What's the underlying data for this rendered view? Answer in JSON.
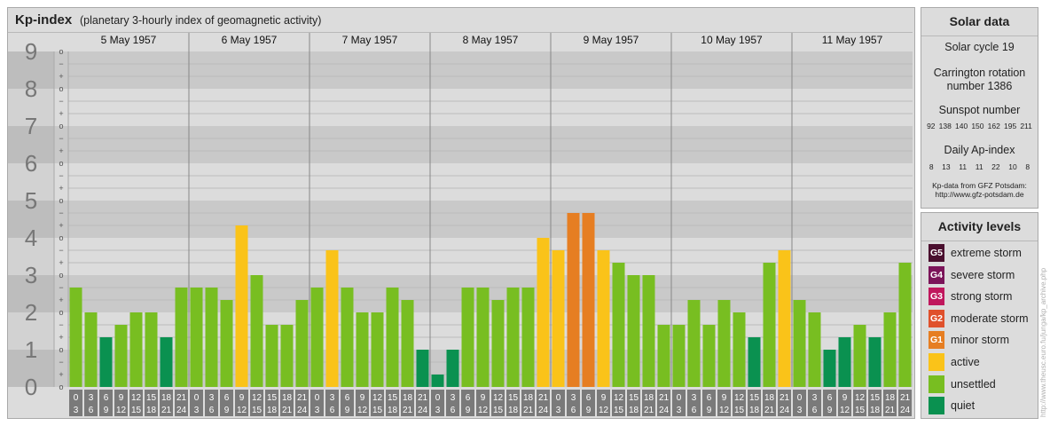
{
  "header": {
    "title": "Kp-index",
    "subtitle": "(planetary 3-hourly index of geomagnetic activity)"
  },
  "chart_data": {
    "type": "bar",
    "title": "Kp-index",
    "subtitle": "(planetary 3-hourly index of geomagnetic activity)",
    "ylim": [
      0,
      9
    ],
    "y_ticks": [
      "0",
      "1",
      "2",
      "3",
      "4",
      "5",
      "6",
      "7",
      "8",
      "9"
    ],
    "sub_ticks": [
      "o",
      "+",
      "−"
    ],
    "days": [
      "5 May 1957",
      "6 May 1957",
      "7 May 1957",
      "8 May 1957",
      "9 May 1957",
      "10 May 1957",
      "11 May 1957"
    ],
    "interval_starts": [
      "0",
      "3",
      "6",
      "9",
      "12",
      "15",
      "18",
      "21"
    ],
    "interval_ends": [
      "3",
      "6",
      "9",
      "12",
      "15",
      "18",
      "21",
      "24"
    ],
    "values": [
      [
        2.667,
        2.0,
        1.333,
        1.667,
        2.0,
        2.0,
        1.333,
        2.667
      ],
      [
        2.667,
        2.667,
        2.333,
        4.333,
        3.0,
        1.667,
        1.667,
        2.333
      ],
      [
        2.667,
        3.667,
        2.667,
        2.0,
        2.0,
        2.667,
        2.333,
        1.0
      ],
      [
        0.333,
        1.0,
        2.667,
        2.667,
        2.333,
        2.667,
        2.667,
        4.0
      ],
      [
        3.667,
        4.667,
        4.667,
        3.667,
        3.333,
        3.0,
        3.0,
        1.667
      ],
      [
        1.667,
        2.333,
        1.667,
        2.333,
        2.0,
        1.333,
        3.333,
        3.667
      ],
      [
        2.333,
        2.0,
        1.0,
        1.333,
        1.667,
        1.333,
        2.0,
        3.333
      ]
    ],
    "color_scale": {
      "quiet": "#0a9150",
      "unsettled": "#78be21",
      "active": "#fac319",
      "G1": "#e67e22",
      "G2": "#e0512c",
      "G3": "#c0175d",
      "G4": "#7b1459",
      "G5": "#4a0f2e"
    },
    "grid": true
  },
  "solar": {
    "title": "Solar data",
    "cycle": "Solar cycle 19",
    "carrington_line1": "Carrington rotation",
    "carrington_line2": "number 1386",
    "sunspot_label": "Sunspot number",
    "sunspot_values": [
      "92",
      "138",
      "140",
      "150",
      "162",
      "195",
      "211"
    ],
    "ap_label": "Daily Ap-index",
    "ap_values": [
      "8",
      "13",
      "11",
      "11",
      "22",
      "10",
      "8"
    ],
    "source_line1": "Kp-data from GFZ Potsdam:",
    "source_line2": "http://www.gfz-potsdam.de"
  },
  "activity": {
    "title": "Activity levels",
    "items": [
      {
        "badge": "G5",
        "label": "extreme storm",
        "color": "#4a0f2e"
      },
      {
        "badge": "G4",
        "label": "severe storm",
        "color": "#7b1459"
      },
      {
        "badge": "G3",
        "label": "strong storm",
        "color": "#c0175d"
      },
      {
        "badge": "G2",
        "label": "moderate storm",
        "color": "#e0512c"
      },
      {
        "badge": "G1",
        "label": "minor storm",
        "color": "#e67e22"
      },
      {
        "badge": "",
        "label": "active",
        "color": "#fac319"
      },
      {
        "badge": "",
        "label": "unsettled",
        "color": "#78be21"
      },
      {
        "badge": "",
        "label": "quiet",
        "color": "#0a9150"
      }
    ]
  },
  "watermark": "http://www.theusc.euro.fu/junga/kp_archive.php"
}
